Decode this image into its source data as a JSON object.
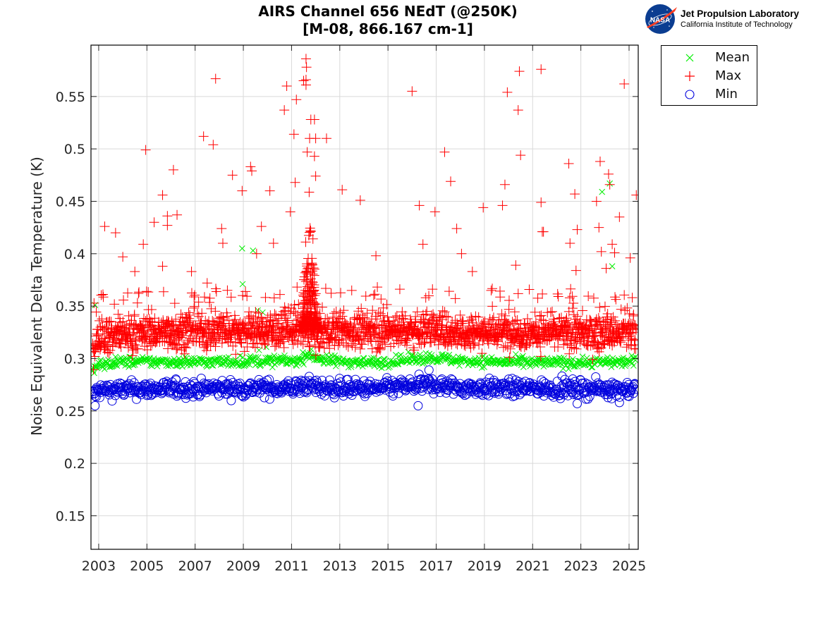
{
  "header": {
    "title_line1": "AIRS Channel 656 NEdT (@250K)",
    "title_line2": "[M-08, 866.167 cm-1]"
  },
  "logo": {
    "badge": "NASA",
    "org": "Jet Propulsion Laboratory",
    "sub": "California Institute of Technology"
  },
  "colors": {
    "mean": "#00ee00",
    "max": "#ff0000",
    "min": "#0000dd",
    "grid": "#d9d9d9",
    "axis": "#262626"
  },
  "chart_data": {
    "type": "scatter",
    "title": "AIRS Channel 656 NEdT (@250K) [M-08, 866.167 cm-1]",
    "xlabel": "",
    "ylabel": "Noise Equivalent Delta Temperature (K)",
    "xlim": [
      2002.68,
      2025.38
    ],
    "ylim": [
      0.118,
      0.599
    ],
    "grid": true,
    "legend_position": "outside-top-right",
    "xticks": [
      2003,
      2005,
      2007,
      2009,
      2011,
      2013,
      2015,
      2017,
      2019,
      2021,
      2023,
      2025
    ],
    "xtick_labels": [
      "2003",
      "2005",
      "2007",
      "2009",
      "2011",
      "2013",
      "2015",
      "2017",
      "2019",
      "2021",
      "2023",
      "2025"
    ],
    "yticks": [
      0.15,
      0.2,
      0.25,
      0.3,
      0.35,
      0.4,
      0.45,
      0.5,
      0.55
    ],
    "ytick_labels": [
      "0.15",
      "0.2",
      "0.25",
      "0.3",
      "0.35",
      "0.4",
      "0.45",
      "0.5",
      "0.55"
    ],
    "legend": [
      {
        "name": "Mean",
        "marker": "x",
        "color": "#00ee00"
      },
      {
        "name": "Max",
        "marker": "+",
        "color": "#ff0000"
      },
      {
        "name": "Min",
        "marker": "o",
        "color": "#0000dd"
      }
    ],
    "series": [
      {
        "name": "Mean",
        "marker": "x",
        "band": {
          "start": 2002.75,
          "end": 2025.3,
          "step": 0.03,
          "center": 0.297,
          "spread": 0.0025,
          "drift": [
            [
              2002.75,
              0.288
            ],
            [
              2003.0,
              0.294
            ],
            [
              2004.0,
              0.297
            ],
            [
              2008.0,
              0.297
            ],
            [
              2011.4,
              0.298
            ],
            [
              2011.6,
              0.304
            ],
            [
              2012.1,
              0.301
            ],
            [
              2012.4,
              0.298
            ],
            [
              2014.5,
              0.296
            ],
            [
              2016.8,
              0.301
            ],
            [
              2018.0,
              0.298
            ],
            [
              2021.0,
              0.296
            ],
            [
              2025.3,
              0.297
            ]
          ]
        },
        "outliers": [
          [
            2002.85,
            0.351
          ],
          [
            2008.95,
            0.405
          ],
          [
            2009.4,
            0.403
          ],
          [
            2008.97,
            0.371
          ],
          [
            2009.6,
            0.346
          ],
          [
            2009.8,
            0.344
          ],
          [
            2009.65,
            0.308
          ],
          [
            2009.95,
            0.311
          ],
          [
            2023.88,
            0.459
          ],
          [
            2024.2,
            0.467
          ],
          [
            2024.3,
            0.388
          ]
        ]
      },
      {
        "name": "Max",
        "marker": "+",
        "band": {
          "start": 2002.75,
          "end": 2025.3,
          "step": 0.012,
          "center": 0.325,
          "spread": 0.008,
          "drift": [
            [
              2002.75,
              0.31
            ],
            [
              2003.1,
              0.322
            ],
            [
              2006.0,
              0.326
            ],
            [
              2011.3,
              0.327
            ],
            [
              2012.2,
              0.325
            ],
            [
              2016.5,
              0.328
            ],
            [
              2018.0,
              0.326
            ],
            [
              2025.3,
              0.324
            ]
          ]
        },
        "spike": {
          "start": 2011.35,
          "end": 2012.25,
          "peak": 2011.75,
          "count": 260,
          "max": 0.48
        },
        "outliers": [
          [
            2003.25,
            0.426
          ],
          [
            2003.7,
            0.42
          ],
          [
            2004.0,
            0.397
          ],
          [
            2004.5,
            0.383
          ],
          [
            2004.85,
            0.409
          ],
          [
            2004.95,
            0.499
          ],
          [
            2005.3,
            0.43
          ],
          [
            2005.65,
            0.456
          ],
          [
            2005.65,
            0.388
          ],
          [
            2005.85,
            0.436
          ],
          [
            2005.85,
            0.427
          ],
          [
            2006.1,
            0.48
          ],
          [
            2006.25,
            0.437
          ],
          [
            2006.85,
            0.383
          ],
          [
            2007.35,
            0.512
          ],
          [
            2007.5,
            0.372
          ],
          [
            2007.75,
            0.504
          ],
          [
            2007.85,
            0.567
          ],
          [
            2008.1,
            0.424
          ],
          [
            2008.15,
            0.41
          ],
          [
            2008.55,
            0.475
          ],
          [
            2008.95,
            0.46
          ],
          [
            2009.3,
            0.483
          ],
          [
            2009.35,
            0.479
          ],
          [
            2009.75,
            0.426
          ],
          [
            2009.55,
            0.4
          ],
          [
            2010.1,
            0.46
          ],
          [
            2010.25,
            0.41
          ],
          [
            2010.7,
            0.537
          ],
          [
            2010.8,
            0.56
          ],
          [
            2010.95,
            0.44
          ],
          [
            2011.15,
            0.468
          ],
          [
            2011.6,
            0.586
          ],
          [
            2011.62,
            0.578
          ],
          [
            2011.6,
            0.566
          ],
          [
            2011.6,
            0.561
          ],
          [
            2011.5,
            0.565
          ],
          [
            2011.2,
            0.547
          ],
          [
            2011.1,
            0.514
          ],
          [
            2011.8,
            0.528
          ],
          [
            2011.95,
            0.528
          ],
          [
            2012.45,
            0.51
          ],
          [
            2011.75,
            0.51
          ],
          [
            2012.0,
            0.51
          ],
          [
            2011.65,
            0.497
          ],
          [
            2011.95,
            0.493
          ],
          [
            2012.0,
            0.474
          ],
          [
            2013.1,
            0.461
          ],
          [
            2013.85,
            0.451
          ],
          [
            2014.5,
            0.398
          ],
          [
            2016.0,
            0.555
          ],
          [
            2016.3,
            0.446
          ],
          [
            2016.45,
            0.409
          ],
          [
            2016.95,
            0.44
          ],
          [
            2017.35,
            0.497
          ],
          [
            2017.6,
            0.469
          ],
          [
            2017.85,
            0.424
          ],
          [
            2018.05,
            0.4
          ],
          [
            2018.5,
            0.383
          ],
          [
            2018.95,
            0.444
          ],
          [
            2019.75,
            0.446
          ],
          [
            2019.85,
            0.466
          ],
          [
            2019.95,
            0.554
          ],
          [
            2020.3,
            0.389
          ],
          [
            2020.4,
            0.537
          ],
          [
            2020.45,
            0.574
          ],
          [
            2020.5,
            0.494
          ],
          [
            2021.35,
            0.576
          ],
          [
            2021.35,
            0.449
          ],
          [
            2021.4,
            0.421
          ],
          [
            2021.45,
            0.421
          ],
          [
            2022.5,
            0.486
          ],
          [
            2022.55,
            0.41
          ],
          [
            2022.75,
            0.457
          ],
          [
            2022.85,
            0.423
          ],
          [
            2022.8,
            0.384
          ],
          [
            2023.65,
            0.45
          ],
          [
            2023.75,
            0.425
          ],
          [
            2023.8,
            0.488
          ],
          [
            2023.85,
            0.402
          ],
          [
            2024.05,
            0.386
          ],
          [
            2024.15,
            0.476
          ],
          [
            2024.2,
            0.466
          ],
          [
            2024.3,
            0.409
          ],
          [
            2024.4,
            0.401
          ],
          [
            2024.6,
            0.435
          ],
          [
            2024.8,
            0.562
          ],
          [
            2025.05,
            0.396
          ],
          [
            2025.3,
            0.456
          ]
        ]
      },
      {
        "name": "Min",
        "marker": "o",
        "band": {
          "start": 2002.75,
          "end": 2025.3,
          "step": 0.025,
          "center": 0.271,
          "spread": 0.004,
          "drift": [
            [
              2002.75,
              0.265
            ],
            [
              2003.1,
              0.27
            ],
            [
              2006.0,
              0.271
            ],
            [
              2011.3,
              0.272
            ],
            [
              2011.6,
              0.275
            ],
            [
              2012.2,
              0.272
            ],
            [
              2014.5,
              0.271
            ],
            [
              2016.8,
              0.275
            ],
            [
              2018.0,
              0.272
            ],
            [
              2025.3,
              0.271
            ]
          ]
        },
        "outliers": [
          [
            2002.85,
            0.255
          ],
          [
            2016.7,
            0.289
          ],
          [
            2016.25,
            0.255
          ],
          [
            2022.85,
            0.257
          ],
          [
            2024.6,
            0.258
          ]
        ]
      }
    ]
  }
}
